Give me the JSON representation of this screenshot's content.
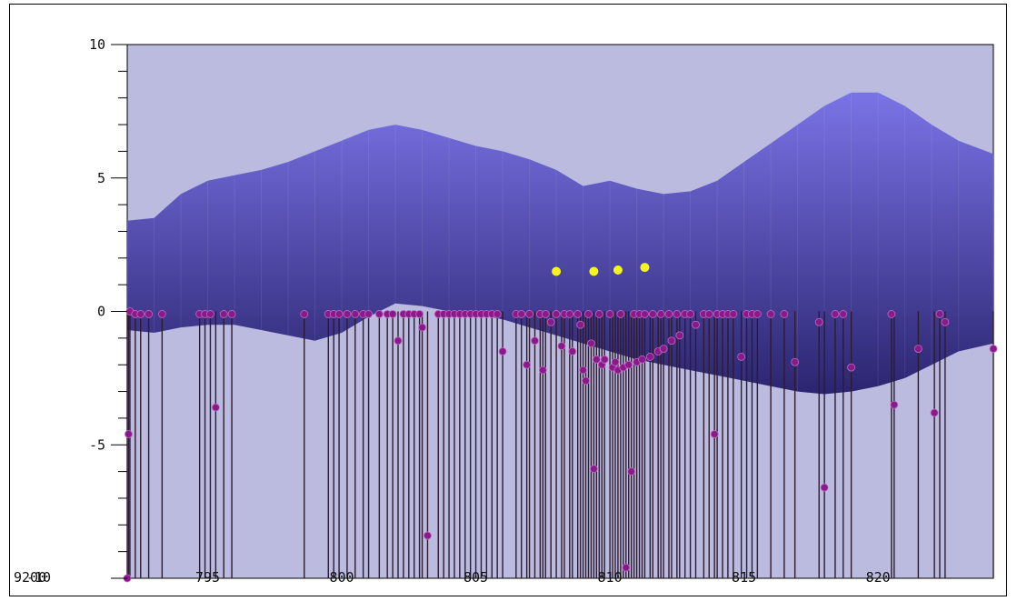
{
  "chart_data": {
    "type": "scatter",
    "title": "",
    "xlabel": "",
    "ylabel": "",
    "xlim": [
      792,
      824.3
    ],
    "ylim": [
      -10,
      10
    ],
    "x_ticks": [
      795,
      800,
      805,
      810,
      815,
      820
    ],
    "x_tick_labels": [
      "795",
      "800",
      "805",
      "810",
      "815",
      "820"
    ],
    "y_ticks": [
      10,
      5,
      0,
      -5
    ],
    "y_tick_labels": [
      "10",
      "5",
      "0",
      "-5"
    ],
    "corner_labels": [
      "9200",
      "-10"
    ],
    "grid": false,
    "colors": {
      "plot_background": "#babbdf",
      "surface_top": "#7a73e6",
      "surface_bottom": "#2b2570",
      "stem": "#2e1b2e",
      "marker": "#8a1a8a",
      "highlight": "#f5f51c"
    },
    "surface": {
      "x": [
        792,
        793,
        794,
        795,
        796,
        797,
        798,
        799,
        800,
        801,
        802,
        803,
        804,
        805,
        806,
        807,
        808,
        809,
        810,
        811,
        812,
        813,
        814,
        815,
        816,
        817,
        818,
        819,
        820,
        821,
        822,
        823,
        824.3
      ],
      "upper": [
        3.4,
        3.5,
        4.4,
        4.9,
        5.1,
        5.3,
        5.6,
        6.0,
        6.4,
        6.8,
        7.0,
        6.8,
        6.5,
        6.2,
        6.0,
        5.7,
        5.3,
        4.7,
        4.9,
        4.6,
        4.4,
        4.5,
        4.9,
        5.6,
        6.3,
        7.0,
        7.7,
        8.2,
        8.2,
        7.7,
        7.0,
        6.4,
        5.9
      ],
      "lower": [
        -0.7,
        -0.8,
        -0.6,
        -0.5,
        -0.5,
        -0.7,
        -0.9,
        -1.1,
        -0.8,
        -0.2,
        0.3,
        0.2,
        0.0,
        -0.1,
        -0.3,
        -0.6,
        -0.9,
        -1.2,
        -1.5,
        -1.8,
        -2.0,
        -2.2,
        -2.4,
        -2.6,
        -2.8,
        -3.0,
        -3.1,
        -3.0,
        -2.8,
        -2.5,
        -2.0,
        -1.5,
        -1.2
      ]
    },
    "highlight_points": [
      {
        "x": 808.0,
        "y": 1.5
      },
      {
        "x": 809.4,
        "y": 1.5
      },
      {
        "x": 810.3,
        "y": 1.55
      },
      {
        "x": 811.3,
        "y": 1.65
      }
    ],
    "stems": [
      [
        792.0,
        -10.0
      ],
      [
        792.05,
        -4.6
      ],
      [
        792.1,
        0.0
      ],
      [
        792.3,
        -0.1
      ],
      [
        792.5,
        -0.1
      ],
      [
        792.8,
        -0.1
      ],
      [
        793.3,
        -0.1
      ],
      [
        794.7,
        -0.1
      ],
      [
        794.9,
        -0.1
      ],
      [
        795.1,
        -0.1
      ],
      [
        795.3,
        -3.6
      ],
      [
        795.6,
        -0.1
      ],
      [
        795.9,
        -0.1
      ],
      [
        798.6,
        -0.1
      ],
      [
        799.5,
        -0.1
      ],
      [
        799.7,
        -0.1
      ],
      [
        799.9,
        -0.1
      ],
      [
        800.2,
        -0.1
      ],
      [
        800.5,
        -0.1
      ],
      [
        800.8,
        -0.1
      ],
      [
        801.0,
        -0.1
      ],
      [
        801.4,
        -0.1
      ],
      [
        801.7,
        -0.1
      ],
      [
        801.9,
        -0.1
      ],
      [
        802.1,
        -1.1
      ],
      [
        802.3,
        -0.1
      ],
      [
        802.5,
        -0.1
      ],
      [
        802.7,
        -0.1
      ],
      [
        802.9,
        -0.1
      ],
      [
        803.0,
        -0.6
      ],
      [
        803.2,
        -8.4
      ],
      [
        803.6,
        -0.1
      ],
      [
        803.8,
        -0.1
      ],
      [
        804.0,
        -0.1
      ],
      [
        804.2,
        -0.1
      ],
      [
        804.4,
        -0.1
      ],
      [
        804.6,
        -0.1
      ],
      [
        804.8,
        -0.1
      ],
      [
        805.0,
        -0.1
      ],
      [
        805.2,
        -0.1
      ],
      [
        805.4,
        -0.1
      ],
      [
        805.6,
        -0.1
      ],
      [
        805.8,
        -0.1
      ],
      [
        806.0,
        -1.5
      ],
      [
        806.5,
        -0.1
      ],
      [
        806.7,
        -0.1
      ],
      [
        806.9,
        -2.0
      ],
      [
        807.0,
        -0.1
      ],
      [
        807.2,
        -1.1
      ],
      [
        807.4,
        -0.1
      ],
      [
        807.5,
        -2.2
      ],
      [
        807.6,
        -0.1
      ],
      [
        807.8,
        -0.4
      ],
      [
        808.0,
        -0.1
      ],
      [
        808.2,
        -1.3
      ],
      [
        808.3,
        -0.1
      ],
      [
        808.5,
        -0.1
      ],
      [
        808.6,
        -1.5
      ],
      [
        808.8,
        -0.1
      ],
      [
        808.9,
        -0.5
      ],
      [
        809.0,
        -2.2
      ],
      [
        809.1,
        -2.6
      ],
      [
        809.2,
        -0.1
      ],
      [
        809.3,
        -1.2
      ],
      [
        809.4,
        -5.9
      ],
      [
        809.5,
        -1.8
      ],
      [
        809.6,
        -0.1
      ],
      [
        809.7,
        -2.0
      ],
      [
        809.8,
        -1.8
      ],
      [
        810.0,
        -0.1
      ],
      [
        810.1,
        -2.1
      ],
      [
        810.2,
        -1.9
      ],
      [
        810.3,
        -2.2
      ],
      [
        810.4,
        -0.1
      ],
      [
        810.5,
        -2.1
      ],
      [
        810.6,
        -9.6
      ],
      [
        810.7,
        -2.0
      ],
      [
        810.8,
        -6.0
      ],
      [
        810.9,
        -0.1
      ],
      [
        811.0,
        -1.9
      ],
      [
        811.1,
        -0.1
      ],
      [
        811.2,
        -1.8
      ],
      [
        811.3,
        -0.1
      ],
      [
        811.5,
        -1.7
      ],
      [
        811.6,
        -0.1
      ],
      [
        811.8,
        -1.5
      ],
      [
        811.9,
        -0.1
      ],
      [
        812.0,
        -1.4
      ],
      [
        812.2,
        -0.1
      ],
      [
        812.3,
        -1.1
      ],
      [
        812.5,
        -0.1
      ],
      [
        812.6,
        -0.9
      ],
      [
        812.8,
        -0.1
      ],
      [
        813.0,
        -0.1
      ],
      [
        813.2,
        -0.5
      ],
      [
        813.5,
        -0.1
      ],
      [
        813.7,
        -0.1
      ],
      [
        813.9,
        -4.6
      ],
      [
        814.0,
        -0.1
      ],
      [
        814.2,
        -0.1
      ],
      [
        814.4,
        -0.1
      ],
      [
        814.6,
        -0.1
      ],
      [
        814.9,
        -1.7
      ],
      [
        815.1,
        -0.1
      ],
      [
        815.3,
        -0.1
      ],
      [
        815.5,
        -0.1
      ],
      [
        816.0,
        -0.1
      ],
      [
        816.5,
        -0.1
      ],
      [
        816.9,
        -1.9
      ],
      [
        817.8,
        -0.4
      ],
      [
        818.0,
        -6.6
      ],
      [
        818.4,
        -0.1
      ],
      [
        818.7,
        -0.1
      ],
      [
        819.0,
        -2.1
      ],
      [
        820.5,
        -0.1
      ],
      [
        820.6,
        -3.5
      ],
      [
        821.5,
        -1.4
      ],
      [
        822.1,
        -3.8
      ],
      [
        822.3,
        -0.1
      ],
      [
        822.5,
        -0.4
      ],
      [
        824.3,
        -1.4
      ]
    ]
  }
}
